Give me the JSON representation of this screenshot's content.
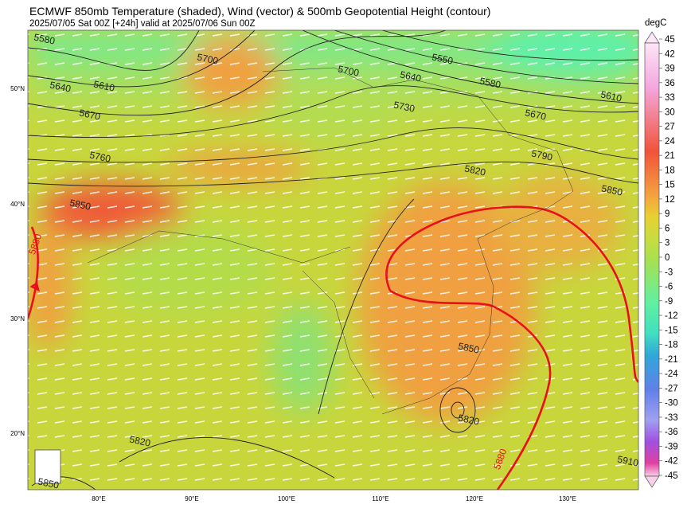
{
  "header": {
    "title": "ECMWF 850mb Temperature (shaded), Wind (vector) & 500mb Geopotential Height (contour)",
    "subtitle": "2025/07/05 Sat 00Z [+24h] valid at 2025/07/06 Sun 00Z"
  },
  "colorbar": {
    "label": "degC",
    "ticks": [
      45,
      42,
      39,
      36,
      33,
      30,
      27,
      24,
      21,
      18,
      15,
      12,
      9,
      6,
      3,
      0,
      -3,
      -6,
      -9,
      -12,
      -15,
      -18,
      -21,
      -24,
      -27,
      -30,
      -33,
      -36,
      -39,
      -42,
      -45
    ]
  },
  "map": {
    "lat_labels": [
      "50°N",
      "40°N",
      "30°N",
      "20°N"
    ],
    "lon_labels": [
      "80°E",
      "90°E",
      "100°E",
      "110°E",
      "120°E",
      "130°E"
    ],
    "contour_labels": [
      5580,
      5640,
      5610,
      5670,
      5700,
      5700,
      5550,
      5640,
      5580,
      5730,
      5610,
      5670,
      5760,
      5790,
      5820,
      5850,
      5850,
      5880,
      5850,
      5820,
      5880,
      5820,
      5910,
      5850
    ]
  }
}
